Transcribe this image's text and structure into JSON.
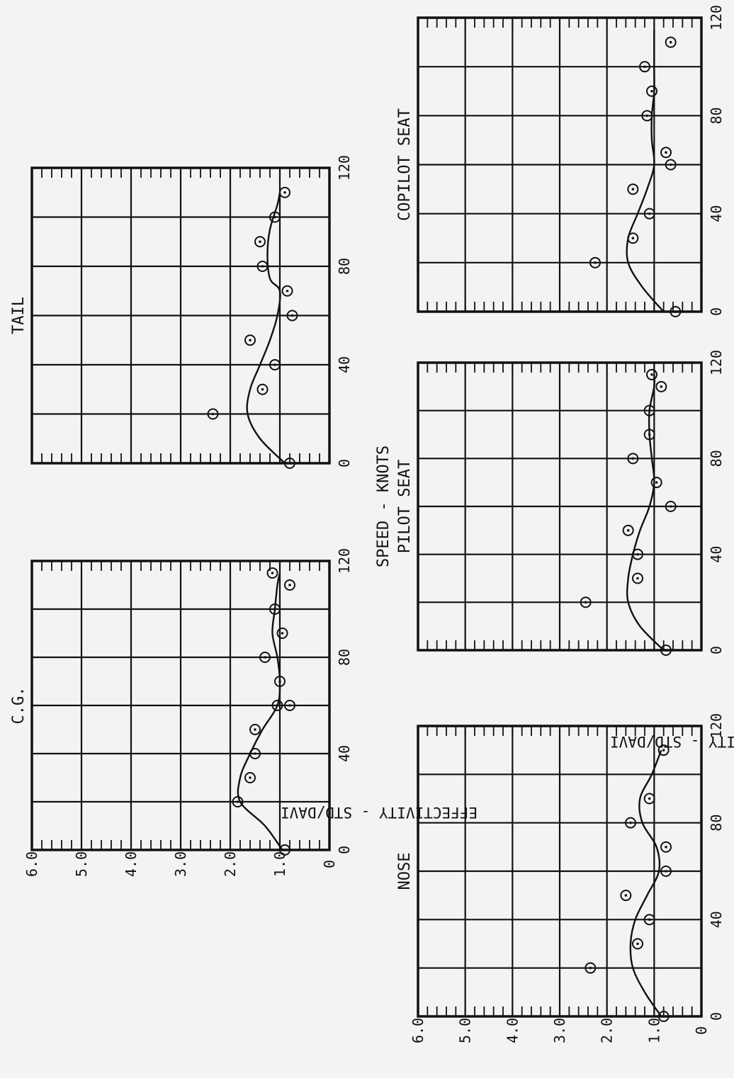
{
  "figure": {
    "xlabel": "SPEED - KNOTS",
    "ylabel": "EFFECTIVITY - STD/DAVI"
  },
  "chart_data": [
    {
      "type": "scatter",
      "title": "C.G.",
      "xlabel": "SPEED - KNOTS",
      "ylabel": "EFFECTIVITY - STD/DAVI",
      "xlim": [
        0,
        120
      ],
      "ylim": [
        0,
        6.0
      ],
      "x_ticks": [
        "0",
        "40",
        "80",
        "120"
      ],
      "y_ticks": [
        "0",
        "1.0",
        "2.0",
        "3.0",
        "4.0",
        "5.0",
        "6.0"
      ],
      "grid": true,
      "points": [
        {
          "x": 0,
          "y": 0.9
        },
        {
          "x": 20,
          "y": 1.85
        },
        {
          "x": 30,
          "y": 1.6
        },
        {
          "x": 40,
          "y": 1.5
        },
        {
          "x": 50,
          "y": 1.5
        },
        {
          "x": 60,
          "y": 0.8
        },
        {
          "x": 60,
          "y": 1.05
        },
        {
          "x": 70,
          "y": 1.0
        },
        {
          "x": 80,
          "y": 1.3
        },
        {
          "x": 90,
          "y": 0.95
        },
        {
          "x": 100,
          "y": 1.1
        },
        {
          "x": 110,
          "y": 0.8
        },
        {
          "x": 115,
          "y": 1.15
        }
      ],
      "curve": [
        {
          "x": 0,
          "y": 0.95
        },
        {
          "x": 10,
          "y": 1.3
        },
        {
          "x": 20,
          "y": 1.8
        },
        {
          "x": 30,
          "y": 1.8
        },
        {
          "x": 40,
          "y": 1.6
        },
        {
          "x": 50,
          "y": 1.35
        },
        {
          "x": 60,
          "y": 1.05
        },
        {
          "x": 70,
          "y": 1.0
        },
        {
          "x": 80,
          "y": 1.05
        },
        {
          "x": 90,
          "y": 1.15
        },
        {
          "x": 100,
          "y": 1.1
        },
        {
          "x": 110,
          "y": 1.05
        },
        {
          "x": 115,
          "y": 1.0
        }
      ]
    },
    {
      "type": "scatter",
      "title": "TAIL",
      "xlabel": "SPEED - KNOTS",
      "ylabel": "EFFECTIVITY - STD/DAVI",
      "xlim": [
        0,
        120
      ],
      "ylim": [
        0,
        6.0
      ],
      "x_ticks": [
        "0",
        "40",
        "80",
        "120"
      ],
      "y_ticks": [
        "0",
        "1.0",
        "2.0",
        "3.0",
        "4.0",
        "5.0",
        "6.0"
      ],
      "grid": true,
      "points": [
        {
          "x": 0,
          "y": 0.8
        },
        {
          "x": 20,
          "y": 2.35
        },
        {
          "x": 30,
          "y": 1.35
        },
        {
          "x": 40,
          "y": 1.1
        },
        {
          "x": 50,
          "y": 1.6
        },
        {
          "x": 60,
          "y": 0.75
        },
        {
          "x": 70,
          "y": 0.85
        },
        {
          "x": 80,
          "y": 1.35
        },
        {
          "x": 90,
          "y": 1.4
        },
        {
          "x": 100,
          "y": 1.1
        },
        {
          "x": 110,
          "y": 0.9
        }
      ],
      "curve": [
        {
          "x": 0,
          "y": 0.9
        },
        {
          "x": 10,
          "y": 1.4
        },
        {
          "x": 20,
          "y": 1.65
        },
        {
          "x": 30,
          "y": 1.6
        },
        {
          "x": 40,
          "y": 1.4
        },
        {
          "x": 50,
          "y": 1.2
        },
        {
          "x": 60,
          "y": 1.05
        },
        {
          "x": 70,
          "y": 1.0
        },
        {
          "x": 75,
          "y": 1.2
        },
        {
          "x": 85,
          "y": 1.25
        },
        {
          "x": 95,
          "y": 1.2
        },
        {
          "x": 105,
          "y": 1.05
        },
        {
          "x": 110,
          "y": 1.0
        }
      ]
    },
    {
      "type": "scatter",
      "title": "NOSE",
      "xlabel": "SPEED - KNOTS",
      "ylabel": "EFFECTIVITY - STD/DAVI",
      "xlim": [
        0,
        120
      ],
      "ylim": [
        0,
        6.0
      ],
      "x_ticks": [
        "0",
        "40",
        "80",
        "120"
      ],
      "y_ticks": [
        "0",
        "1.0",
        "2.0",
        "3.0",
        "4.0",
        "5.0",
        "6.0"
      ],
      "grid": true,
      "points": [
        {
          "x": 0,
          "y": 0.8
        },
        {
          "x": 20,
          "y": 2.35
        },
        {
          "x": 30,
          "y": 1.35
        },
        {
          "x": 40,
          "y": 1.1
        },
        {
          "x": 50,
          "y": 1.6
        },
        {
          "x": 60,
          "y": 0.75
        },
        {
          "x": 70,
          "y": 0.75
        },
        {
          "x": 80,
          "y": 1.5
        },
        {
          "x": 90,
          "y": 1.1
        },
        {
          "x": 110,
          "y": 0.8
        }
      ],
      "curve": [
        {
          "x": 0,
          "y": 0.85
        },
        {
          "x": 10,
          "y": 1.2
        },
        {
          "x": 20,
          "y": 1.45
        },
        {
          "x": 30,
          "y": 1.5
        },
        {
          "x": 40,
          "y": 1.4
        },
        {
          "x": 50,
          "y": 1.15
        },
        {
          "x": 60,
          "y": 0.9
        },
        {
          "x": 70,
          "y": 0.95
        },
        {
          "x": 80,
          "y": 1.25
        },
        {
          "x": 90,
          "y": 1.3
        },
        {
          "x": 100,
          "y": 1.05
        },
        {
          "x": 110,
          "y": 0.85
        }
      ]
    },
    {
      "type": "scatter",
      "title": "PILOT SEAT",
      "xlabel": "SPEED - KNOTS",
      "ylabel": "EFFECTIVITY - STD/DAVI",
      "xlim": [
        0,
        120
      ],
      "ylim": [
        0,
        6.0
      ],
      "x_ticks": [
        "0",
        "40",
        "80",
        "120"
      ],
      "y_ticks": [
        "0",
        "1.0",
        "2.0",
        "3.0",
        "4.0",
        "5.0",
        "6.0"
      ],
      "grid": true,
      "points": [
        {
          "x": 0,
          "y": 0.75
        },
        {
          "x": 20,
          "y": 2.45
        },
        {
          "x": 30,
          "y": 1.35
        },
        {
          "x": 40,
          "y": 1.35
        },
        {
          "x": 50,
          "y": 1.55
        },
        {
          "x": 60,
          "y": 0.65
        },
        {
          "x": 70,
          "y": 0.95
        },
        {
          "x": 80,
          "y": 1.45
        },
        {
          "x": 90,
          "y": 1.1
        },
        {
          "x": 100,
          "y": 1.1
        },
        {
          "x": 110,
          "y": 0.85
        },
        {
          "x": 115,
          "y": 1.05
        }
      ],
      "curve": [
        {
          "x": 0,
          "y": 0.8
        },
        {
          "x": 10,
          "y": 1.3
        },
        {
          "x": 20,
          "y": 1.55
        },
        {
          "x": 30,
          "y": 1.55
        },
        {
          "x": 40,
          "y": 1.45
        },
        {
          "x": 50,
          "y": 1.3
        },
        {
          "x": 60,
          "y": 1.1
        },
        {
          "x": 70,
          "y": 1.0
        },
        {
          "x": 80,
          "y": 1.05
        },
        {
          "x": 90,
          "y": 1.1
        },
        {
          "x": 100,
          "y": 1.1
        },
        {
          "x": 110,
          "y": 1.0
        },
        {
          "x": 115,
          "y": 1.0
        }
      ]
    },
    {
      "type": "scatter",
      "title": "COPILOT SEAT",
      "xlabel": "SPEED - KNOTS",
      "ylabel": "EFFECTIVITY - STD/DAVI",
      "xlim": [
        0,
        120
      ],
      "ylim": [
        0,
        6.0
      ],
      "x_ticks": [
        "0",
        "40",
        "80",
        "120"
      ],
      "y_ticks": [
        "0",
        "1.0",
        "2.0",
        "3.0",
        "4.0",
        "5.0",
        "6.0"
      ],
      "grid": true,
      "points": [
        {
          "x": 0,
          "y": 0.55
        },
        {
          "x": 20,
          "y": 2.25
        },
        {
          "x": 30,
          "y": 1.45
        },
        {
          "x": 40,
          "y": 1.1
        },
        {
          "x": 50,
          "y": 1.45
        },
        {
          "x": 60,
          "y": 0.65
        },
        {
          "x": 65,
          "y": 0.75
        },
        {
          "x": 80,
          "y": 1.15
        },
        {
          "x": 90,
          "y": 1.05
        },
        {
          "x": 100,
          "y": 1.2
        },
        {
          "x": 110,
          "y": 0.65
        }
      ],
      "curve": [
        {
          "x": 0,
          "y": 0.8
        },
        {
          "x": 10,
          "y": 1.25
        },
        {
          "x": 20,
          "y": 1.55
        },
        {
          "x": 30,
          "y": 1.55
        },
        {
          "x": 40,
          "y": 1.35
        },
        {
          "x": 50,
          "y": 1.15
        },
        {
          "x": 60,
          "y": 1.0
        },
        {
          "x": 70,
          "y": 1.05
        },
        {
          "x": 80,
          "y": 1.05
        },
        {
          "x": 90,
          "y": 1.0
        },
        {
          "x": 100,
          "y": 1.0
        },
        {
          "x": 110,
          "y": 1.0
        },
        {
          "x": 115,
          "y": 1.0
        }
      ]
    }
  ]
}
